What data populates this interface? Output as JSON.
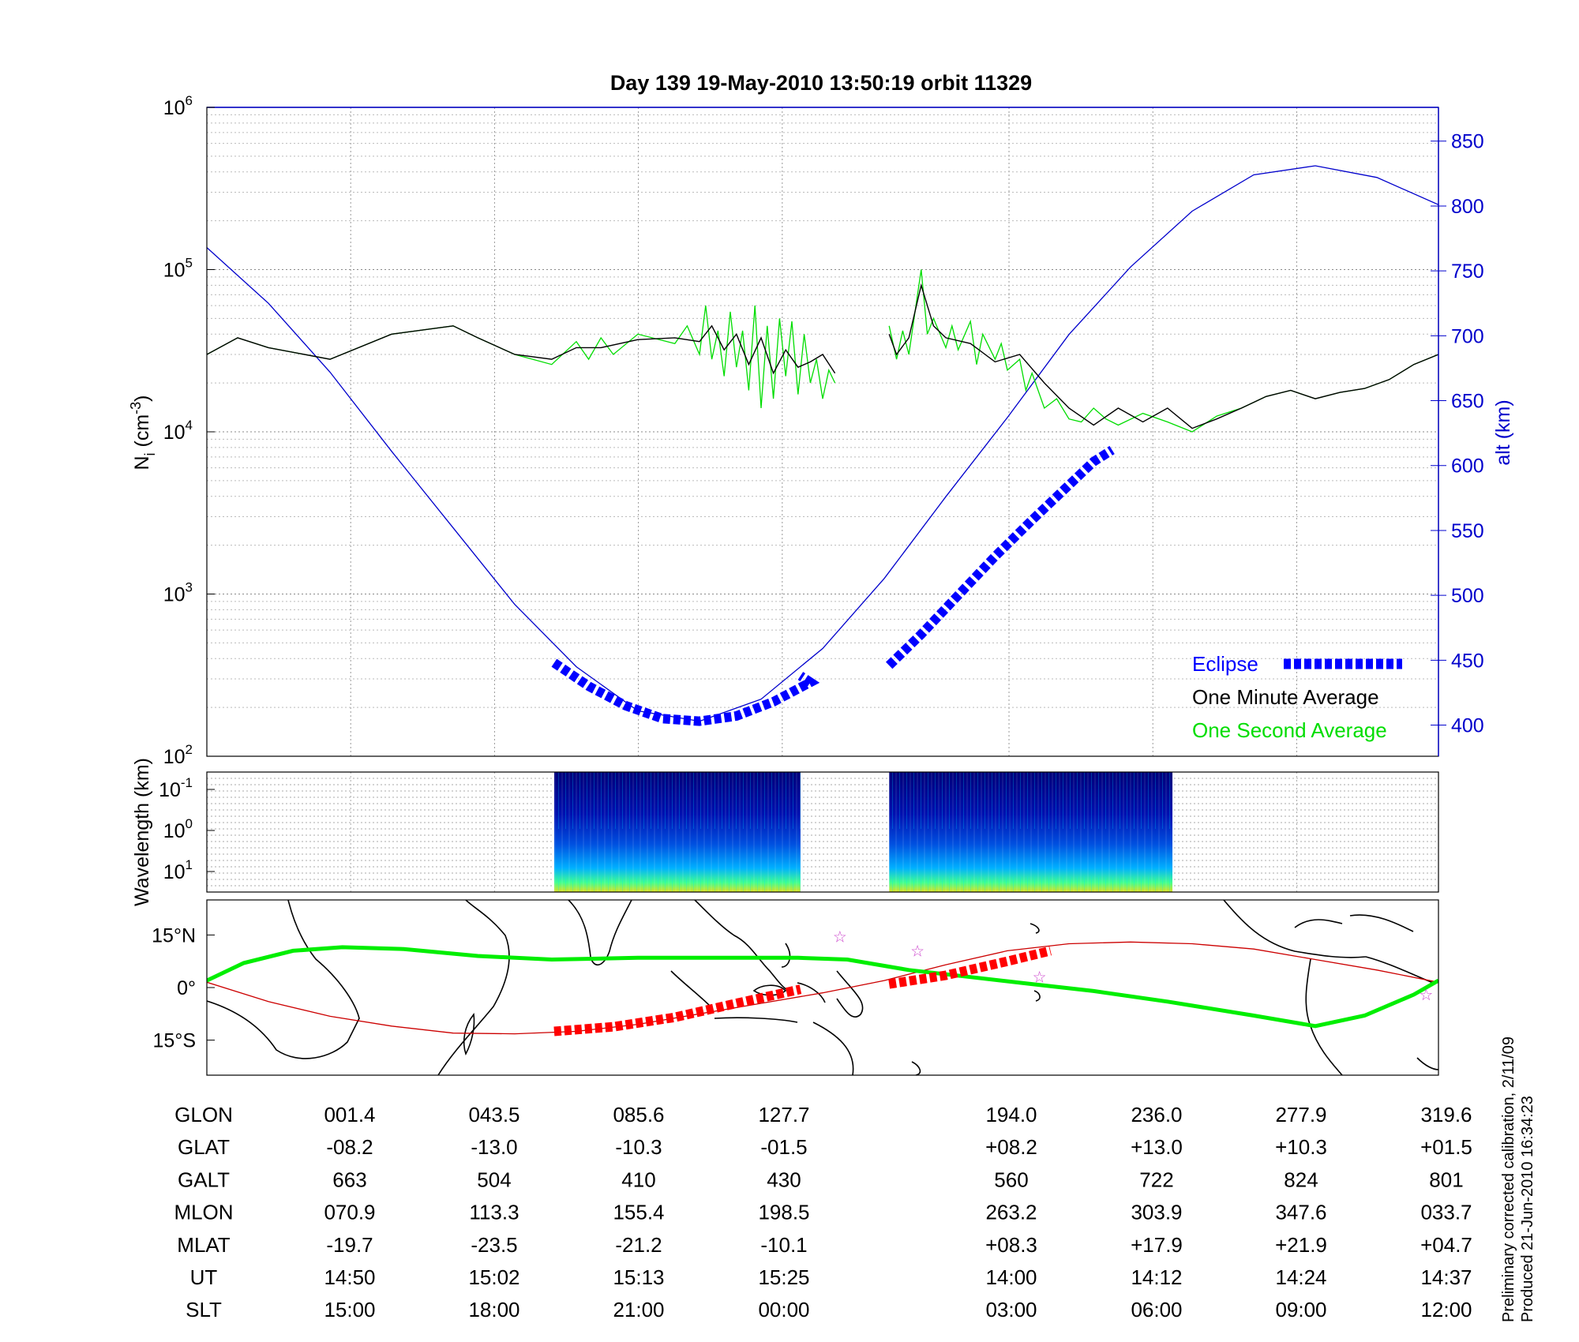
{
  "title": "Day 139  19-May-2010 13:50:19   orbit 11329",
  "side_note": {
    "line1": "Preliminary corrected calibration, 2/11/09",
    "line2": "Produced 21-Jun-2010 16:34:23"
  },
  "colors": {
    "axis": "#000000",
    "alt_axis": "#0000cc",
    "eclipse": "#0000ff",
    "one_minute": "#000000",
    "one_second": "#00dd00",
    "track_eclipse": "#ff0000",
    "track_line": "#cc0000",
    "mag_equator": "#00ee00",
    "star": "#cc44cc"
  },
  "chart_data": [
    {
      "id": "density",
      "type": "line",
      "ylabel_main": "N",
      "ylabel_sub": "i",
      "ylabel_unit": " (cm",
      "ylabel_exp": "-3",
      "ylabel_close": ")",
      "ylabel_right": "alt (km)",
      "y_scale": "log",
      "ylim": [
        100,
        1000000
      ],
      "yticks": [
        {
          "base": "10",
          "exp": "2",
          "value": 100
        },
        {
          "base": "10",
          "exp": "3",
          "value": 1000
        },
        {
          "base": "10",
          "exp": "4",
          "value": 10000
        },
        {
          "base": "10",
          "exp": "5",
          "value": 100000
        },
        {
          "base": "10",
          "exp": "6",
          "value": 1000000
        }
      ],
      "y2lim": [
        376,
        876
      ],
      "y2ticks": [
        "400",
        "450",
        "500",
        "550",
        "600",
        "650",
        "700",
        "750",
        "800",
        "850"
      ],
      "xlim": [
        0,
        1
      ],
      "grid": true,
      "legend": {
        "placement": "bottom-right",
        "entries": [
          {
            "label": "Eclipse",
            "key": "eclipse"
          },
          {
            "label": "One Minute Average",
            "key": "one_minute"
          },
          {
            "label": "One Second Average",
            "key": "one_second"
          }
        ]
      },
      "series": [
        {
          "key": "altitude",
          "axis": "right",
          "x": [
            0,
            0.05,
            0.1,
            0.15,
            0.2,
            0.25,
            0.3,
            0.35,
            0.4,
            0.45,
            0.5,
            0.55,
            0.6,
            0.65,
            0.7,
            0.75,
            0.8,
            0.85,
            0.9,
            0.95,
            1
          ],
          "y": [
            768,
            725,
            672,
            611,
            552,
            493,
            445,
            411,
            403,
            420,
            459,
            513,
            576,
            637,
            701,
            753,
            796,
            824,
            831,
            822,
            801
          ]
        },
        {
          "key": "one_minute",
          "axis": "left",
          "segments": [
            {
              "x": [
                0,
                0.025,
                0.05,
                0.1,
                0.15,
                0.2,
                0.22,
                0.25,
                0.28,
                0.3,
                0.32,
                0.35,
                0.38,
                0.4,
                0.41,
                0.42,
                0.43,
                0.44,
                0.45,
                0.46,
                0.47,
                0.48,
                0.49,
                0.5,
                0.51
              ],
              "y": [
                30000,
                38000,
                33000,
                28000,
                40000,
                45000,
                38000,
                30000,
                28000,
                33000,
                33000,
                37000,
                38000,
                36000,
                45000,
                32000,
                40000,
                26000,
                38000,
                23000,
                32000,
                25000,
                27000,
                30000,
                23000
              ]
            },
            {
              "x": [
                0.554,
                0.56,
                0.57,
                0.58,
                0.59,
                0.6,
                0.62,
                0.64,
                0.66,
                0.68,
                0.7,
                0.72,
                0.74,
                0.76,
                0.78,
                0.8,
                0.82,
                0.84,
                0.86,
                0.88,
                0.9,
                0.92,
                0.94,
                0.96,
                0.98,
                1
              ],
              "y": [
                40000,
                30000,
                38000,
                80000,
                45000,
                38000,
                35000,
                27000,
                30000,
                20000,
                14000,
                11000,
                14000,
                11500,
                14000,
                10500,
                12000,
                14000,
                16500,
                18000,
                16000,
                17500,
                18500,
                21000,
                26000,
                30000
              ]
            }
          ]
        },
        {
          "key": "one_second",
          "axis": "left",
          "segments": [
            {
              "x": [
                0,
                0.025,
                0.05,
                0.1,
                0.15,
                0.2,
                0.22,
                0.25,
                0.28,
                0.3,
                0.31,
                0.32,
                0.33,
                0.35,
                0.38,
                0.39,
                0.4,
                0.405,
                0.41,
                0.415,
                0.42,
                0.425,
                0.43,
                0.435,
                0.44,
                0.445,
                0.45,
                0.455,
                0.46,
                0.465,
                0.47,
                0.475,
                0.48,
                0.485,
                0.49,
                0.495,
                0.5,
                0.505,
                0.51
              ],
              "y": [
                30000,
                38000,
                33000,
                28000,
                40000,
                45000,
                38000,
                30000,
                26000,
                36000,
                28000,
                38000,
                30000,
                40000,
                35000,
                45000,
                30000,
                60000,
                28000,
                42000,
                22000,
                55000,
                25000,
                42000,
                18000,
                60000,
                14000,
                45000,
                16000,
                50000,
                22000,
                48000,
                17000,
                40000,
                20000,
                28000,
                16000,
                24000,
                20000
              ]
            },
            {
              "x": [
                0.554,
                0.56,
                0.565,
                0.57,
                0.575,
                0.58,
                0.585,
                0.59,
                0.6,
                0.605,
                0.61,
                0.62,
                0.625,
                0.63,
                0.64,
                0.645,
                0.65,
                0.66,
                0.665,
                0.67,
                0.68,
                0.69,
                0.7,
                0.71,
                0.72,
                0.73,
                0.74,
                0.76,
                0.78,
                0.8,
                0.82,
                0.84,
                0.86,
                0.88,
                0.9,
                0.92,
                0.94,
                0.96,
                0.98,
                1
              ],
              "y": [
                45000,
                28000,
                42000,
                30000,
                55000,
                100000,
                40000,
                50000,
                33000,
                45000,
                32000,
                48000,
                26000,
                40000,
                28000,
                35000,
                24000,
                28000,
                18000,
                23000,
                14000,
                16000,
                12000,
                11500,
                14000,
                12000,
                11000,
                13000,
                11500,
                10000,
                12500,
                14000,
                16500,
                18000,
                16000,
                17500,
                18500,
                21000,
                26000,
                30000
              ]
            }
          ]
        },
        {
          "key": "eclipse",
          "axis": "right",
          "segments": [
            {
              "x": [
                0.282,
                0.31,
                0.34,
                0.37,
                0.4,
                0.43,
                0.46,
                0.49,
                0.482
              ],
              "y": [
                448,
                430,
                415,
                405,
                403,
                407,
                418,
                433,
                438
              ]
            },
            {
              "x": [
                0.554,
                0.58,
                0.61,
                0.64,
                0.67,
                0.7,
                0.72,
                0.735
              ],
              "y": [
                446,
                470,
                500,
                530,
                558,
                585,
                603,
                612
              ]
            }
          ]
        }
      ]
    },
    {
      "id": "spectrogram",
      "type": "heatmap",
      "ylabel": "Wavelength (km)",
      "y_scale": "log",
      "yticks": [
        {
          "base": "10",
          "exp": "-1"
        },
        {
          "base": "10",
          "exp": "0"
        },
        {
          "base": "10",
          "exp": "1"
        }
      ],
      "colormap": "jet",
      "blocks": [
        {
          "x": [
            0.282,
            0.482
          ]
        },
        {
          "x": [
            0.554,
            0.784
          ]
        }
      ]
    },
    {
      "id": "track_map",
      "type": "line",
      "ylabel_ticks": [
        "15°N",
        "0°",
        "15°S"
      ],
      "lat_ticks": [
        15,
        0,
        -15
      ],
      "ylim": [
        -25,
        25
      ],
      "series": [
        {
          "key": "satellite_track",
          "x": [
            0,
            0.05,
            0.1,
            0.15,
            0.2,
            0.25,
            0.3,
            0.35,
            0.4,
            0.45,
            0.5,
            0.55,
            0.6,
            0.65,
            0.7,
            0.75,
            0.8,
            0.85,
            0.9,
            0.95,
            1
          ],
          "lat": [
            1.5,
            -4,
            -8.2,
            -11,
            -13,
            -13.2,
            -12.5,
            -10.5,
            -7.5,
            -4.5,
            -1.5,
            2,
            6.5,
            10.5,
            12.5,
            13,
            12.5,
            11,
            8,
            5,
            1.5
          ]
        },
        {
          "key": "track_eclipse",
          "segments": [
            {
              "x": [
                0.282,
                0.33,
                0.38,
                0.43,
                0.482
              ],
              "lat": [
                -12.5,
                -11.2,
                -8.5,
                -4.5,
                -0.5
              ]
            },
            {
              "x": [
                0.554,
                0.6,
                0.65,
                0.685
              ],
              "lat": [
                1,
                3.5,
                7.5,
                10.5
              ]
            }
          ]
        },
        {
          "key": "mag_equator",
          "x": [
            0,
            0.03,
            0.07,
            0.11,
            0.16,
            0.22,
            0.28,
            0.35,
            0.42,
            0.48,
            0.52,
            0.57,
            0.62,
            0.67,
            0.72,
            0.78,
            0.85,
            0.9,
            0.94,
            0.98,
            1
          ],
          "lat": [
            2,
            7,
            10.5,
            11.5,
            11,
            9,
            8,
            8.5,
            8.5,
            8.5,
            8,
            5,
            3,
            1,
            -1,
            -4,
            -8,
            -11,
            -8,
            -2,
            2
          ]
        }
      ],
      "markers": [
        {
          "x": 0.514,
          "lat": 14.5
        },
        {
          "x": 0.577,
          "lat": 10.5
        },
        {
          "x": 0.676,
          "lat": 3
        },
        {
          "x": 0.99,
          "lat": -2
        }
      ]
    }
  ],
  "table": {
    "rows": [
      {
        "label": "GLON",
        "values": [
          "001.4",
          "043.5",
          "085.6",
          "127.7",
          "194.0",
          "236.0",
          "277.9",
          "319.6"
        ]
      },
      {
        "label": "GLAT",
        "values": [
          "-08.2",
          "-13.0",
          "-10.3",
          "-01.5",
          "+08.2",
          "+13.0",
          "+10.3",
          "+01.5"
        ]
      },
      {
        "label": "GALT",
        "values": [
          "663",
          "504",
          "410",
          "430",
          "560",
          "722",
          "824",
          "801"
        ]
      },
      {
        "label": "MLON",
        "values": [
          "070.9",
          "113.3",
          "155.4",
          "198.5",
          "263.2",
          "303.9",
          "347.6",
          "033.7"
        ]
      },
      {
        "label": "MLAT",
        "values": [
          "-19.7",
          "-23.5",
          "-21.2",
          "-10.1",
          "+08.3",
          "+17.9",
          "+21.9",
          "+04.7"
        ]
      },
      {
        "label": "UT",
        "values": [
          "14:50",
          "15:02",
          "15:13",
          "15:25",
          "14:00",
          "14:12",
          "14:24",
          "14:37"
        ]
      },
      {
        "label": "SLT",
        "values": [
          "15:00",
          "18:00",
          "21:00",
          "00:00",
          "03:00",
          "06:00",
          "09:00",
          "12:00"
        ]
      }
    ]
  }
}
